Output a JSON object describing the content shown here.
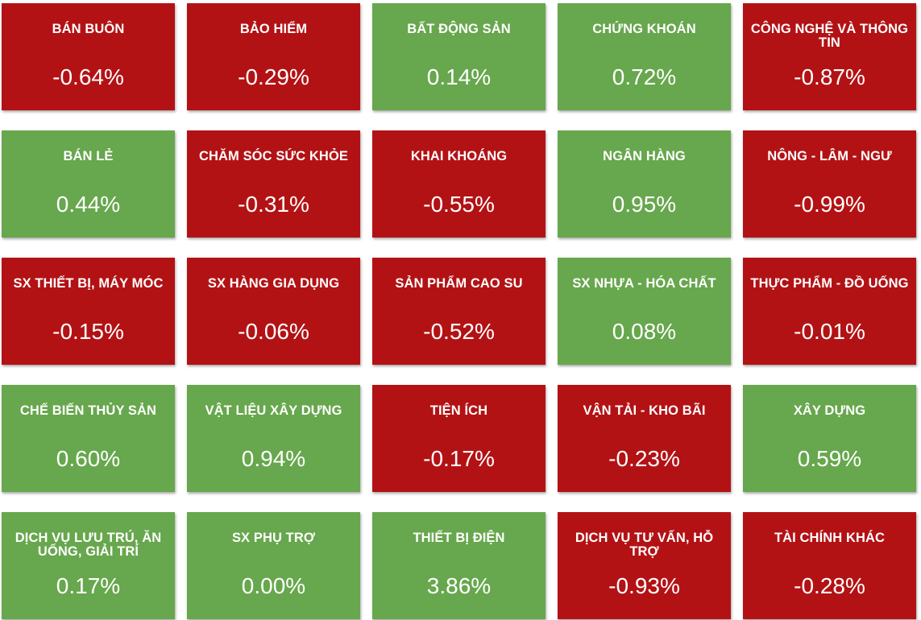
{
  "colors": {
    "up": "#67a74d",
    "down": "#b31215",
    "text": "#ffffff"
  },
  "sectors": [
    {
      "label": "BÁN BUÔN",
      "change": "-0.64%",
      "trend": "down"
    },
    {
      "label": "BẢO HIỂM",
      "change": "-0.29%",
      "trend": "down"
    },
    {
      "label": "BẤT ĐỘNG SẢN",
      "change": "0.14%",
      "trend": "up"
    },
    {
      "label": "CHỨNG KHOÁN",
      "change": "0.72%",
      "trend": "up"
    },
    {
      "label": "CÔNG NGHỆ VÀ THÔNG TIN",
      "change": "-0.87%",
      "trend": "down"
    },
    {
      "label": "BÁN LẺ",
      "change": "0.44%",
      "trend": "up"
    },
    {
      "label": "CHĂM SÓC SỨC KHỎE",
      "change": "-0.31%",
      "trend": "down"
    },
    {
      "label": "KHAI KHOÁNG",
      "change": "-0.55%",
      "trend": "down"
    },
    {
      "label": "NGÂN HÀNG",
      "change": "0.95%",
      "trend": "up"
    },
    {
      "label": "NÔNG - LÂM - NGƯ",
      "change": "-0.99%",
      "trend": "down"
    },
    {
      "label": "SX THIẾT BỊ, MÁY MÓC",
      "change": "-0.15%",
      "trend": "down"
    },
    {
      "label": "SX HÀNG GIA DỤNG",
      "change": "-0.06%",
      "trend": "down"
    },
    {
      "label": "SẢN PHẨM CAO SU",
      "change": "-0.52%",
      "trend": "down"
    },
    {
      "label": "SX NHỰA - HÓA CHẤT",
      "change": "0.08%",
      "trend": "up"
    },
    {
      "label": "THỰC PHẨM - ĐỒ UỐNG",
      "change": "-0.01%",
      "trend": "down"
    },
    {
      "label": "CHẾ BIẾN THỦY SẢN",
      "change": "0.60%",
      "trend": "up"
    },
    {
      "label": "VẬT LIỆU XÂY DỰNG",
      "change": "0.94%",
      "trend": "up"
    },
    {
      "label": "TIỆN ÍCH",
      "change": "-0.17%",
      "trend": "down"
    },
    {
      "label": "VẬN TẢI - KHO BÃI",
      "change": "-0.23%",
      "trend": "down"
    },
    {
      "label": "XÂY DỰNG",
      "change": "0.59%",
      "trend": "up"
    },
    {
      "label": "DỊCH VỤ LƯU TRÚ, ĂN UỐNG, GIẢI TRÍ",
      "change": "0.17%",
      "trend": "up"
    },
    {
      "label": "SX PHỤ TRỢ",
      "change": "0.00%",
      "trend": "up"
    },
    {
      "label": "THIẾT BỊ ĐIỆN",
      "change": "3.86%",
      "trend": "up"
    },
    {
      "label": "DỊCH VỤ TƯ VẤN, HỖ TRỢ",
      "change": "-0.93%",
      "trend": "down"
    },
    {
      "label": "TÀI CHÍNH KHÁC",
      "change": "-0.28%",
      "trend": "down"
    }
  ]
}
